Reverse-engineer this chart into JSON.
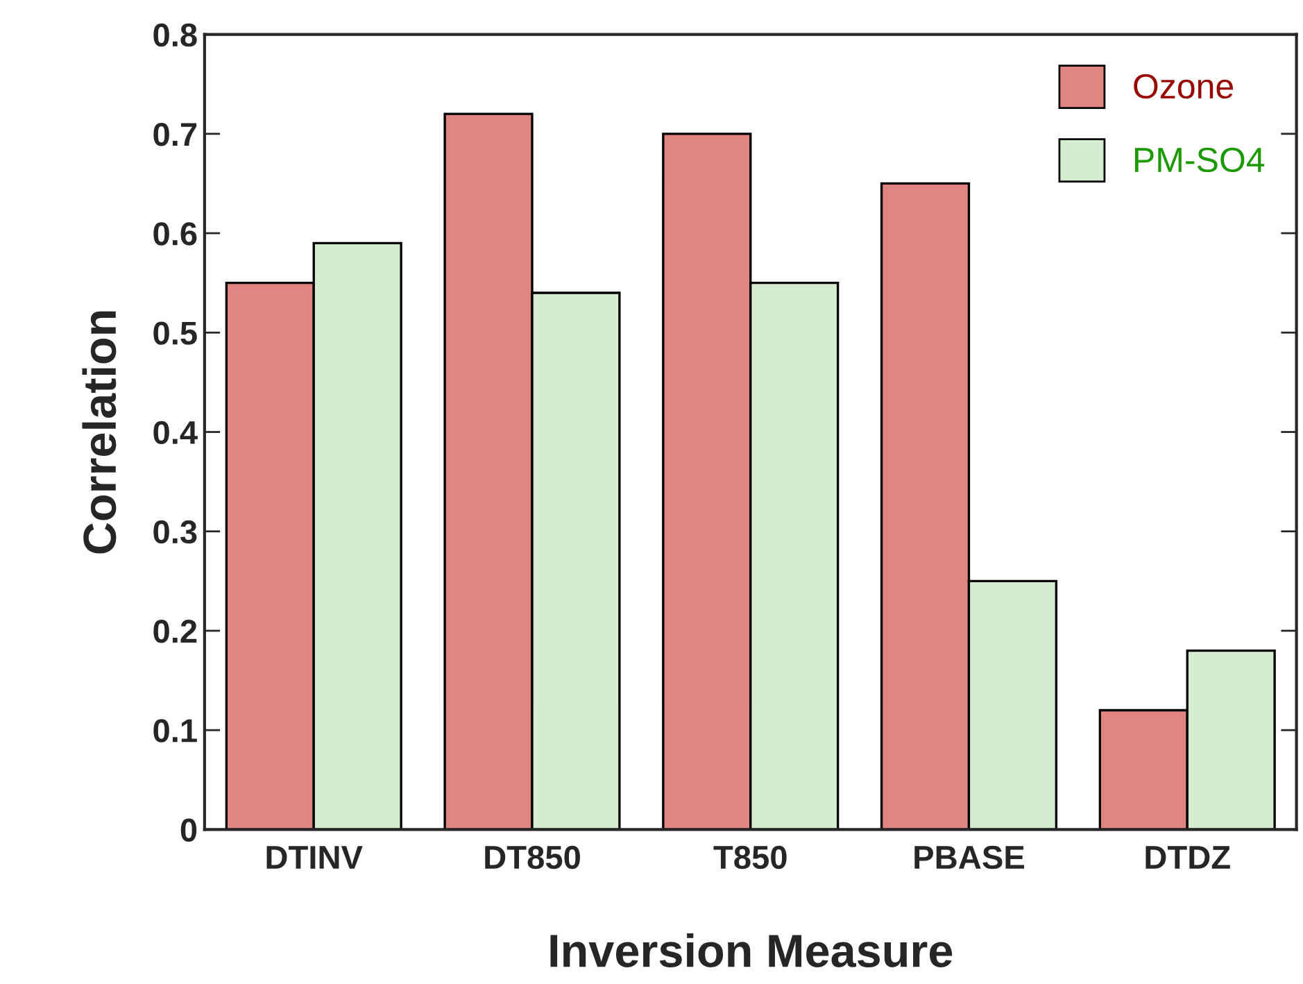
{
  "chart_data": {
    "type": "bar",
    "xlabel": "Inversion Measure",
    "ylabel": "Correlation",
    "categories": [
      "DTINV",
      "DT850",
      "T850",
      "PBASE",
      "DTDZ"
    ],
    "series": [
      {
        "name": "Ozone",
        "color": "#e08580",
        "values": [
          0.55,
          0.72,
          0.7,
          0.65,
          0.12
        ]
      },
      {
        "name": "PM-SO4",
        "color": "#d5ecd0",
        "values": [
          0.59,
          0.54,
          0.55,
          0.25,
          0.18
        ]
      }
    ],
    "ylim": [
      0,
      0.8
    ],
    "yticks": [
      0,
      0.1,
      0.2,
      0.3,
      0.4,
      0.5,
      0.6,
      0.7,
      0.8
    ],
    "grid": false,
    "legend": "top right"
  }
}
